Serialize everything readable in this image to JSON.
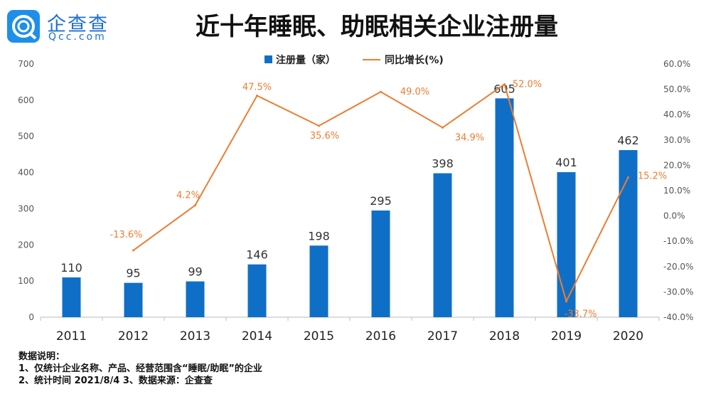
{
  "logo": {
    "cn": "企查查",
    "en": "Qcc.com"
  },
  "title": "近十年睡眠、助眠相关企业注册量",
  "notes": [
    "数据说明：",
    "1、仅统计企业名称、产品、经营范围含“睡眠/助眠”的企业",
    "2、统计时间 2021/8/4    3、数据来源：企查查"
  ],
  "chart_data": {
    "type": "bar+line",
    "categories": [
      "2011",
      "2012",
      "2013",
      "2014",
      "2015",
      "2016",
      "2017",
      "2018",
      "2019",
      "2020"
    ],
    "series": [
      {
        "name": "注册量（家）",
        "type": "bar",
        "axis": "left",
        "color": "#0f6fc6",
        "values": [
          110,
          95,
          99,
          146,
          198,
          295,
          398,
          605,
          401,
          462
        ],
        "labels": [
          "110",
          "95",
          "99",
          "146",
          "198",
          "295",
          "398",
          "605",
          "401",
          "462"
        ]
      },
      {
        "name": "同比增长(%)",
        "type": "line",
        "axis": "right",
        "color": "#ed7d31",
        "values": [
          null,
          -13.6,
          4.2,
          47.5,
          35.6,
          49.0,
          34.9,
          52.0,
          -33.7,
          15.2
        ],
        "labels": [
          "",
          "-13.6%",
          "4.2%",
          "47.5%",
          "35.6%",
          "49.0%",
          "34.9%",
          "52.0%",
          "-33.7%",
          "15.2%"
        ]
      }
    ],
    "left_axis": {
      "range": [
        0,
        700
      ],
      "ticks": [
        "0",
        "100",
        "200",
        "300",
        "400",
        "500",
        "600",
        "700"
      ]
    },
    "right_axis": {
      "range": [
        -40,
        60
      ],
      "ticks": [
        "-40.0%",
        "-30.0%",
        "-20.0%",
        "-10.0%",
        "0.0%",
        "10.0%",
        "20.0%",
        "30.0%",
        "40.0%",
        "50.0%",
        "60.0%"
      ]
    },
    "legend": "top",
    "grid": false
  }
}
